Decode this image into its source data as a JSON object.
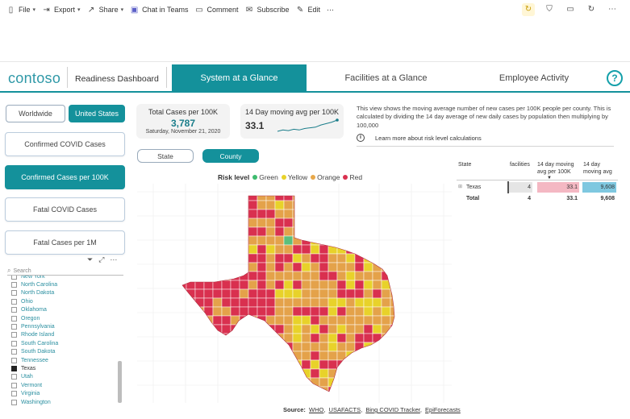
{
  "toolbar": {
    "items": [
      {
        "label": "File",
        "icon": "document-icon",
        "caret": true
      },
      {
        "label": "Export",
        "icon": "export-arrow-icon",
        "caret": true
      },
      {
        "label": "Share",
        "icon": "share-icon",
        "caret": true
      },
      {
        "label": "Chat in Teams",
        "icon": "teams-icon",
        "caret": false
      },
      {
        "label": "Comment",
        "icon": "comment-icon",
        "caret": false
      },
      {
        "label": "Subscribe",
        "icon": "mail-icon",
        "caret": false
      },
      {
        "label": "Edit",
        "icon": "pencil-icon",
        "caret": false
      }
    ],
    "more": "⋯",
    "right_icons": [
      "sync-icon",
      "bookmark-icon",
      "view-icon",
      "refresh-icon",
      "more-icon"
    ]
  },
  "header": {
    "logo": "contoso",
    "app_title": "Readiness Dashboard",
    "tabs": [
      {
        "label": "System at a Glance",
        "active": true
      },
      {
        "label": "Facilities at a Glance",
        "active": false
      },
      {
        "label": "Employee Activity",
        "active": false
      }
    ],
    "help": "?"
  },
  "scope": {
    "worldwide": "Worldwide",
    "us": "United States",
    "selected": "United States"
  },
  "metrics": [
    {
      "label": "Confirmed COVID Cases",
      "active": false
    },
    {
      "label": "Confirmed Cases per 100K",
      "active": true
    },
    {
      "label": "Fatal COVID Cases",
      "active": false
    },
    {
      "label": "Fatal Cases per 1M",
      "active": false
    }
  ],
  "slicer": {
    "search_placeholder": "Search",
    "states": [
      {
        "name": "New York",
        "checked": false
      },
      {
        "name": "North Carolina",
        "checked": false
      },
      {
        "name": "North Dakota",
        "checked": false
      },
      {
        "name": "Ohio",
        "checked": false
      },
      {
        "name": "Oklahoma",
        "checked": false
      },
      {
        "name": "Oregon",
        "checked": false
      },
      {
        "name": "Pennsylvania",
        "checked": false
      },
      {
        "name": "Rhode Island",
        "checked": false
      },
      {
        "name": "South Carolina",
        "checked": false
      },
      {
        "name": "South Dakota",
        "checked": false
      },
      {
        "name": "Tennessee",
        "checked": false
      },
      {
        "name": "Texas",
        "checked": true
      },
      {
        "name": "Utah",
        "checked": false
      },
      {
        "name": "Vermont",
        "checked": false
      },
      {
        "name": "Virginia",
        "checked": false
      },
      {
        "name": "Washington",
        "checked": false
      }
    ]
  },
  "kpi": {
    "total_label": "Total Cases per 100K",
    "total_value": "3,787",
    "date": "Saturday, November 21, 2020",
    "moving_label": "14 Day moving avg per 100K",
    "moving_value": "33.1"
  },
  "description": "This view shows the moving average number of new cases per 100K people per county. This is calculated by dividing the 14 day average of new daily cases by population then multiplying by 100,000",
  "learn_more": "Learn more about risk level calculations",
  "geo_toggle": {
    "state": "State",
    "county": "County",
    "selected": "County"
  },
  "legend": {
    "title": "Risk level",
    "items": [
      {
        "label": "Green",
        "color": "#3dbb6e"
      },
      {
        "label": "Yellow",
        "color": "#e8d22a"
      },
      {
        "label": "Orange",
        "color": "#e8a84a"
      },
      {
        "label": "Red",
        "color": "#d9304f"
      }
    ]
  },
  "map_colors": {
    "red": "#d9304f",
    "orange": "#e4a24a",
    "yellow": "#e8d22a",
    "green": "#5cbf7b"
  },
  "table": {
    "headers": [
      "State",
      "facilities",
      "14 day moving avg per 100K",
      "14 day moving avg"
    ],
    "rows": [
      {
        "state": "Texas",
        "facilities": "4",
        "moving_100k": "33.1",
        "moving_avg": "9,608"
      }
    ],
    "total": {
      "label": "Total",
      "facilities": "4",
      "moving_100k": "33.1",
      "moving_avg": "9,608"
    },
    "sparkline": [
      2.0,
      2.2,
      2.1,
      2.3,
      2.2,
      2.4,
      2.5,
      2.6,
      2.9,
      3.1,
      3.3,
      3.6
    ]
  },
  "source": {
    "label": "Source:",
    "links": [
      "WHO",
      "USAFACTS",
      "Bing COVID Tracker",
      "EpiForecasts"
    ]
  }
}
